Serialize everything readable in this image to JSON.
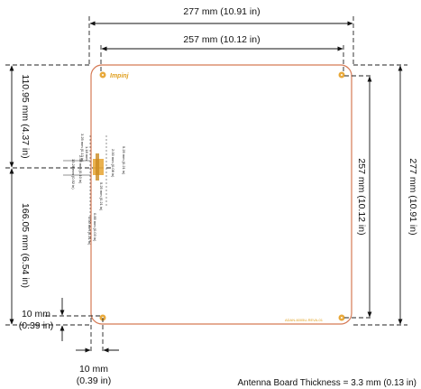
{
  "dimensions": {
    "top_outer": "277 mm  (10.91 in)",
    "top_inner": "257 mm  (10.12 in)",
    "right_inner": "257 mm  (10.12 in)",
    "right_outer": "277 mm  (10.91 in)",
    "left_upper": "110.95 mm  (4.37 in)",
    "left_lower": "166.05 mm  (6.54 in)",
    "left_corner_mm": "10 mm",
    "left_corner_in": "(0.39 in)",
    "bottom_corner_mm": "10 mm",
    "bottom_corner_in": "(0.39 in)"
  },
  "footer_note": "Antenna Board Thickness = 3.3 mm  (0.13 in)",
  "board": {
    "logo_text": "Impinj",
    "part_label": "ADAN-6005U-REVA-01"
  },
  "feed_detail_labels": [
    "5.25 mm (0.21 in)",
    "2.00 mm (0.08 in)",
    "3.25 mm (0.13 in)",
    "1.18 mm",
    "2.50 mm (0.10 in)",
    "13.28 mm (0.52 in)",
    "5.25 mm (0.21 in)",
    "0.85 mm (0.03 in)",
    "5.30 mm (0.21 in)"
  ],
  "colors": {
    "board_outline": "#d57a55",
    "hole_fill": "#e8a93c",
    "logo": "#e0a020"
  }
}
